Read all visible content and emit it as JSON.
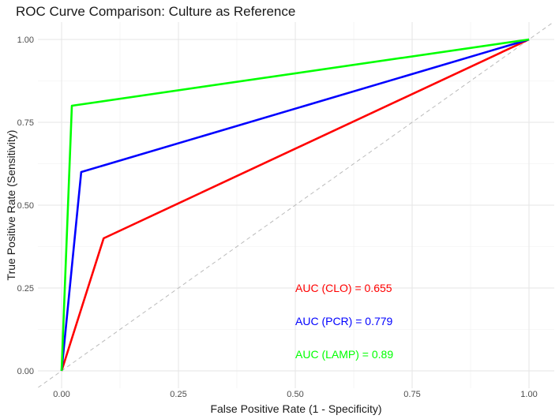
{
  "chart_data": {
    "type": "line",
    "title": "ROC Curve Comparison: Culture as Reference",
    "xlabel": "False Positive Rate (1 - Specificity)",
    "ylabel": "True Positive Rate (Sensitivity)",
    "xlim": [
      -0.05,
      1.05
    ],
    "ylim": [
      -0.05,
      1.05
    ],
    "x_ticks": [
      0.0,
      0.25,
      0.5,
      0.75,
      1.0
    ],
    "y_ticks": [
      0.0,
      0.25,
      0.5,
      0.75,
      1.0
    ],
    "x_tick_labels": [
      "0.00",
      "0.25",
      "0.50",
      "0.75",
      "1.00"
    ],
    "y_tick_labels": [
      "0.00",
      "0.25",
      "0.50",
      "0.75",
      "1.00"
    ],
    "grid": true,
    "background": "#ffffff",
    "series": [
      {
        "color": "#ff0000",
        "x": [
          0,
          0.09,
          1
        ],
        "y": [
          0,
          0.4,
          1
        ]
      },
      {
        "color": "#0000ff",
        "x": [
          0,
          0.042,
          1
        ],
        "y": [
          0,
          0.6,
          1
        ]
      },
      {
        "color": "#00ff00",
        "x": [
          0,
          0.022,
          1
        ],
        "y": [
          0,
          0.8,
          1
        ]
      }
    ],
    "reference_line": {
      "x": [
        -0.05,
        1.05
      ],
      "y": [
        -0.05,
        1.05
      ],
      "color": "#bbbbbb",
      "style": "dashed"
    },
    "annotations": [
      {
        "text": "AUC (CLO) = 0.655",
        "x": 0.5,
        "y": 0.25,
        "color": "#ff0000"
      },
      {
        "text": "AUC (PCR) = 0.779",
        "x": 0.5,
        "y": 0.15,
        "color": "#0000ff"
      },
      {
        "text": "AUC (LAMP) = 0.89",
        "x": 0.5,
        "y": 0.05,
        "color": "#00ff00"
      }
    ]
  }
}
